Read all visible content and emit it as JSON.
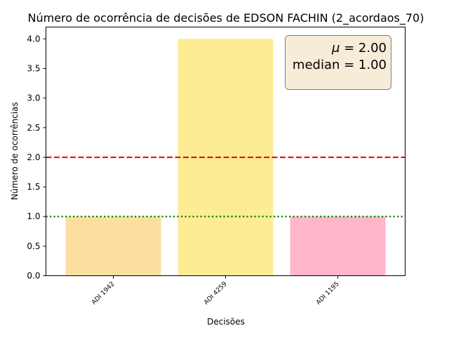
{
  "chart_data": {
    "type": "bar",
    "title": "Número de ocorrência de decisões de EDSON FACHIN (2_acordaos_70)",
    "xlabel": "Decisões",
    "ylabel": "Número de ocorrências",
    "categories": [
      "ADI 1942",
      "ADI 4259",
      "ADI 1195"
    ],
    "values": [
      1,
      4,
      1
    ],
    "bar_colors": [
      "#fcdf9f",
      "#fdec94",
      "#ffb6c8"
    ],
    "ylim": [
      0,
      4.2
    ],
    "yticks": [
      "0.0",
      "0.5",
      "1.0",
      "1.5",
      "2.0",
      "2.5",
      "3.0",
      "3.5",
      "4.0"
    ],
    "grid": false,
    "reference_lines": [
      {
        "label": "mean",
        "value": 2.0,
        "color": "#ff0000",
        "style": "dashed"
      },
      {
        "label": "median",
        "value": 1.0,
        "color": "#008000",
        "style": "dotted"
      }
    ],
    "annotation": {
      "mu_symbol": "μ",
      "mu_text": " = 2.00",
      "median_text": "median = 1.00",
      "placement": "top-right"
    }
  }
}
